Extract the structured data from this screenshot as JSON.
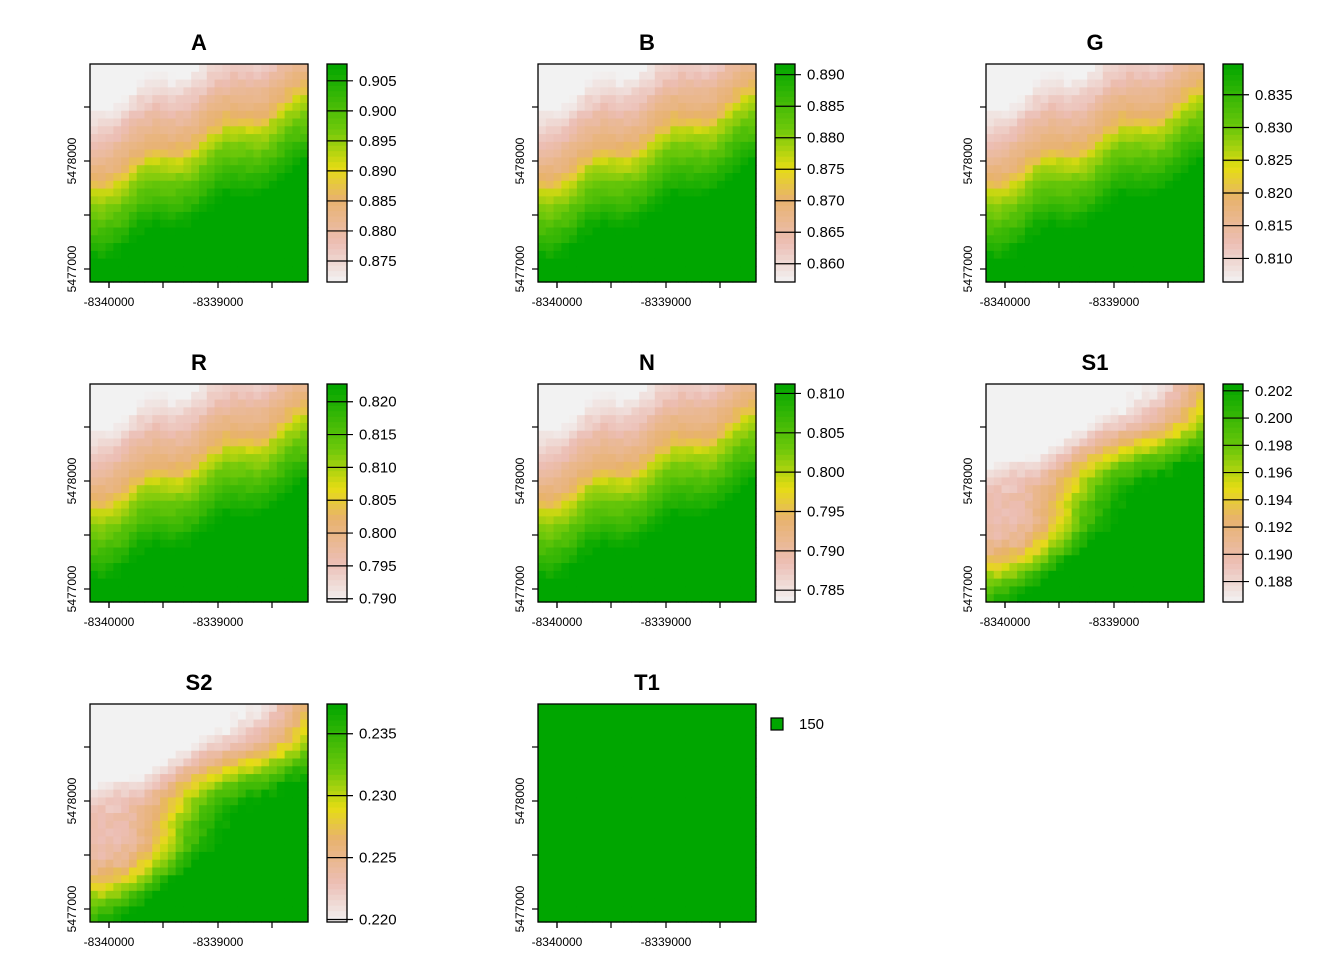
{
  "chart_data": [
    {
      "type": "heatmap",
      "title": "A",
      "x_ticks": [
        "-8340000",
        "-8339000"
      ],
      "y_ticks": [
        "5477000",
        "5478000"
      ],
      "colorbar": {
        "ticks": [
          "0.875",
          "0.880",
          "0.885",
          "0.890",
          "0.895",
          "0.900",
          "0.905"
        ],
        "min": 0.8715,
        "max": 0.9078
      },
      "pattern": "boundary"
    },
    {
      "type": "heatmap",
      "title": "B",
      "x_ticks": [
        "-8340000",
        "-8339000"
      ],
      "y_ticks": [
        "5477000",
        "5478000"
      ],
      "colorbar": {
        "ticks": [
          "0.860",
          "0.865",
          "0.870",
          "0.875",
          "0.880",
          "0.885",
          "0.890"
        ],
        "min": 0.8571,
        "max": 0.8917
      },
      "pattern": "boundary"
    },
    {
      "type": "heatmap",
      "title": "G",
      "x_ticks": [
        "-8340000",
        "-8339000"
      ],
      "y_ticks": [
        "5477000",
        "5478000"
      ],
      "colorbar": {
        "ticks": [
          "0.810",
          "0.815",
          "0.820",
          "0.825",
          "0.830",
          "0.835"
        ],
        "min": 0.8064,
        "max": 0.8397
      },
      "pattern": "boundary"
    },
    {
      "type": "heatmap",
      "title": "R",
      "x_ticks": [
        "-8340000",
        "-8339000"
      ],
      "y_ticks": [
        "5477000",
        "5478000"
      ],
      "colorbar": {
        "ticks": [
          "0.790",
          "0.795",
          "0.800",
          "0.805",
          "0.810",
          "0.815",
          "0.820"
        ],
        "min": 0.7895,
        "max": 0.8227
      },
      "pattern": "boundary"
    },
    {
      "type": "heatmap",
      "title": "N",
      "x_ticks": [
        "-8340000",
        "-8339000"
      ],
      "y_ticks": [
        "5477000",
        "5478000"
      ],
      "colorbar": {
        "ticks": [
          "0.785",
          "0.790",
          "0.795",
          "0.800",
          "0.805",
          "0.810"
        ],
        "min": 0.7835,
        "max": 0.8112
      },
      "pattern": "boundary"
    },
    {
      "type": "heatmap",
      "title": "S1",
      "x_ticks": [
        "-8340000",
        "-8339000"
      ],
      "y_ticks": [
        "5477000",
        "5478000"
      ],
      "colorbar": {
        "ticks": [
          "0.188",
          "0.190",
          "0.192",
          "0.194",
          "0.196",
          "0.198",
          "0.200",
          "0.202"
        ],
        "min": 0.1865,
        "max": 0.2025
      },
      "pattern": "blob"
    },
    {
      "type": "heatmap",
      "title": "S2",
      "x_ticks": [
        "-8340000",
        "-8339000"
      ],
      "y_ticks": [
        "5477000",
        "5478000"
      ],
      "colorbar": {
        "ticks": [
          "0.220",
          "0.225",
          "0.230",
          "0.235"
        ],
        "min": 0.2198,
        "max": 0.2374
      },
      "pattern": "blob"
    },
    {
      "type": "heatmap",
      "title": "T1",
      "x_ticks": [
        "-8340000",
        "-8339000"
      ],
      "y_ticks": [
        "5477000",
        "5478000"
      ],
      "legend": {
        "value": "150",
        "color": "#00a600"
      },
      "pattern": "constant"
    }
  ]
}
